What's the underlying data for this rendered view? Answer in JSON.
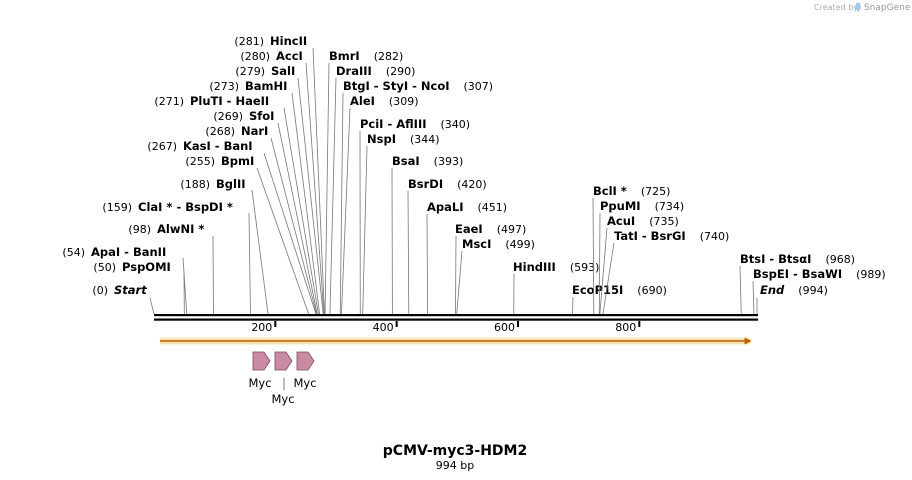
{
  "credit": {
    "prefix": "Created by",
    "brand": "SnapGene"
  },
  "plasmid": {
    "name": "pCMV-myc3-HDM2",
    "length_label": "994 bp",
    "length_bp": 994
  },
  "colors": {
    "orf": "#f2b233",
    "orf_arrow": "#b86000",
    "myc": "#c98aa3",
    "myc_stroke": "#7a4d5d",
    "leader": "#777777"
  },
  "ruler": {
    "ticks": [
      200,
      400,
      600,
      800
    ]
  },
  "sites": [
    {
      "id": "start",
      "label": "Start",
      "pos": "(0)",
      "bp": 0,
      "italic": true
    },
    {
      "id": "pspomi",
      "label": "PspOMI",
      "pos": "(50)",
      "bp": 50
    },
    {
      "id": "apai",
      "label": "ApaI  - BanII",
      "pos": "(54)",
      "bp": 54
    },
    {
      "id": "alwni",
      "label": "AlwNI *",
      "pos": "(98)",
      "bp": 98
    },
    {
      "id": "clai",
      "label": "ClaI *  - BspDI *",
      "pos": "(159)",
      "bp": 159
    },
    {
      "id": "bglii",
      "label": "BglII",
      "pos": "(188)",
      "bp": 188
    },
    {
      "id": "bpmi",
      "label": "BpmI",
      "pos": "(255)",
      "bp": 255
    },
    {
      "id": "kasi",
      "label": "KasI  - BanI",
      "pos": "(267)",
      "bp": 267
    },
    {
      "id": "nari",
      "label": "NarI",
      "pos": "(268)",
      "bp": 268
    },
    {
      "id": "sfoi",
      "label": "SfoI",
      "pos": "(269)",
      "bp": 269
    },
    {
      "id": "pluti",
      "label": "PluTI  - HaeII",
      "pos": "(271)",
      "bp": 271
    },
    {
      "id": "bamhi",
      "label": "BamHI",
      "pos": "(273)",
      "bp": 273
    },
    {
      "id": "sali",
      "label": "SalI",
      "pos": "(279)",
      "bp": 279
    },
    {
      "id": "acci",
      "label": "AccI",
      "pos": "(280)",
      "bp": 280
    },
    {
      "id": "hincii",
      "label": "HincII",
      "pos": "(281)",
      "bp": 281
    },
    {
      "id": "bmri",
      "label": "BmrI",
      "pos": "(282)",
      "bp": 282
    },
    {
      "id": "draiii",
      "label": "DraIII",
      "pos": "(290)",
      "bp": 290
    },
    {
      "id": "btgi",
      "label": "BtgI  - StyI  - NcoI",
      "pos": "(307)",
      "bp": 307
    },
    {
      "id": "alei",
      "label": "AleI",
      "pos": "(309)",
      "bp": 309
    },
    {
      "id": "pcii",
      "label": "PciI  - AflIII",
      "pos": "(340)",
      "bp": 340
    },
    {
      "id": "nspi",
      "label": "NspI",
      "pos": "(344)",
      "bp": 344
    },
    {
      "id": "bsai",
      "label": "BsaI",
      "pos": "(393)",
      "bp": 393
    },
    {
      "id": "bsrdi",
      "label": "BsrDI",
      "pos": "(420)",
      "bp": 420
    },
    {
      "id": "apali",
      "label": "ApaLI",
      "pos": "(451)",
      "bp": 451
    },
    {
      "id": "eaei",
      "label": "EaeI",
      "pos": "(497)",
      "bp": 497
    },
    {
      "id": "msci",
      "label": "MscI",
      "pos": "(499)",
      "bp": 499
    },
    {
      "id": "hindiii",
      "label": "HindIII",
      "pos": "(593)",
      "bp": 593
    },
    {
      "id": "ecop15i",
      "label": "EcoP15I",
      "pos": "(690)",
      "bp": 690
    },
    {
      "id": "bcli",
      "label": "BclI *",
      "pos": "(725)",
      "bp": 725
    },
    {
      "id": "ppumi",
      "label": "PpuMI",
      "pos": "(734)",
      "bp": 734
    },
    {
      "id": "acui",
      "label": "AcuI",
      "pos": "(735)",
      "bp": 735
    },
    {
      "id": "tati",
      "label": "TatI  - BsrGI",
      "pos": "(740)",
      "bp": 740
    },
    {
      "id": "btsi",
      "label": "BtsI  - BtsαI",
      "pos": "(968)",
      "bp": 968
    },
    {
      "id": "bspei",
      "label": "BspEI  - BsaWI",
      "pos": "(989)",
      "bp": 989
    },
    {
      "id": "end",
      "label": "End",
      "pos": "(994)",
      "bp": 994,
      "italic": true
    }
  ],
  "features": {
    "orf": {
      "start_bp": 18,
      "end_bp": 990
    },
    "myc": [
      {
        "label": "Myc",
        "start_bp": 165,
        "end_bp": 195
      },
      {
        "label": "Myc",
        "start_bp": 201,
        "end_bp": 231
      },
      {
        "label": "Myc",
        "start_bp": 237,
        "end_bp": 267
      }
    ]
  }
}
